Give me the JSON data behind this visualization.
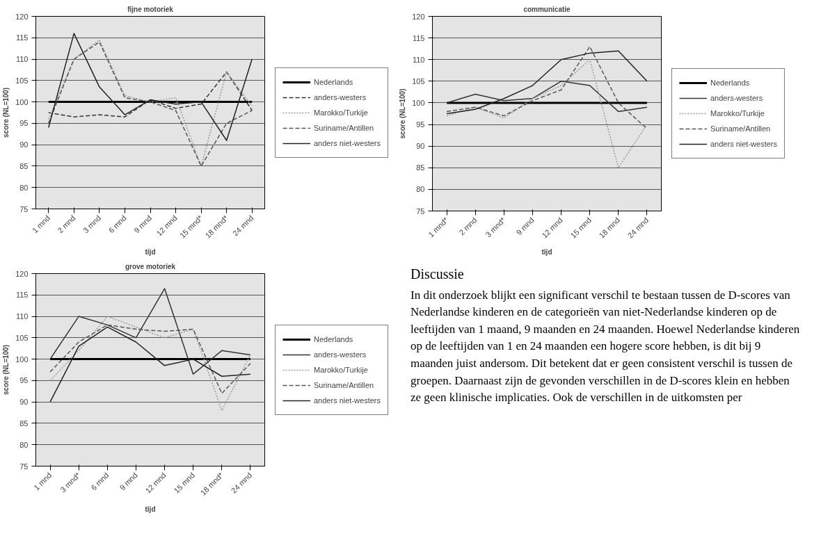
{
  "chart_data": [
    {
      "type": "line",
      "title": "fijne motoriek",
      "xlabel": "tijd",
      "ylabel": "score (NL=100)",
      "categories": [
        "1 mnd",
        "2 mnd",
        "3 mnd",
        "6 mnd",
        "9 mnd",
        "12 mnd",
        "15 mnd*",
        "18 mnd*",
        "24 mnd"
      ],
      "ylim": [
        75,
        120
      ],
      "yticks": [
        75,
        80,
        85,
        90,
        95,
        100,
        105,
        110,
        115,
        120
      ],
      "grid": "y",
      "legend": "right",
      "series": [
        {
          "name": "Nederlands",
          "color": "#000000",
          "line_style": "solid",
          "values": [
            100,
            100,
            100,
            100,
            100,
            100,
            100,
            100,
            100
          ]
        },
        {
          "name": "anders-westers",
          "color": "#333333",
          "line_style": "dashed",
          "values": [
            97.5,
            96.5,
            97,
            96.5,
            100.5,
            98.5,
            99.5,
            107,
            98
          ]
        },
        {
          "name": "Marokko/Turkije",
          "color": "#9a9a9a",
          "line_style": "dotted",
          "values": [
            96,
            110,
            114.5,
            101.5,
            100,
            101,
            85,
            107,
            99
          ]
        },
        {
          "name": "Suriname/Antillen",
          "color": "#555555",
          "line_style": "dashed",
          "values": [
            95,
            110,
            114,
            101,
            100,
            98,
            85,
            95,
            98
          ]
        },
        {
          "name": "anders niet-westers",
          "color": "#222222",
          "line_style": "solid",
          "values": [
            94,
            116,
            103.5,
            97,
            100.5,
            99.5,
            100,
            91,
            110
          ]
        }
      ]
    },
    {
      "type": "line",
      "title": "communicatie",
      "xlabel": "tijd",
      "ylabel": "score (NL=100)",
      "categories": [
        "1 mnd*",
        "2 mnd",
        "3 mnd*",
        "9 mnd",
        "12 mnd",
        "15 mnd",
        "18 mnd",
        "24 mnd"
      ],
      "ylim": [
        75,
        120
      ],
      "yticks": [
        75,
        80,
        85,
        90,
        95,
        100,
        105,
        110,
        115,
        120
      ],
      "grid": "y",
      "legend": "right",
      "series": [
        {
          "name": "Nederlands",
          "color": "#000000",
          "line_style": "solid",
          "values": [
            100,
            100,
            100,
            100,
            100,
            100,
            100,
            100
          ]
        },
        {
          "name": "anders-westers",
          "color": "#333333",
          "line_style": "solid",
          "values": [
            100,
            102,
            100.5,
            101,
            105,
            104,
            98,
            99
          ]
        },
        {
          "name": "Marokko/Turkije",
          "color": "#9a9a9a",
          "line_style": "dotted",
          "values": [
            97,
            99,
            96.5,
            101,
            104,
            110,
            85,
            95
          ]
        },
        {
          "name": "Suriname/Antillen",
          "color": "#555555",
          "line_style": "dashed",
          "values": [
            98,
            99,
            97,
            100.5,
            103,
            113,
            100,
            94
          ]
        },
        {
          "name": "anders niet-westers",
          "color": "#222222",
          "line_style": "solid",
          "values": [
            97.5,
            98.5,
            101,
            104,
            110,
            111.5,
            112,
            105
          ]
        }
      ]
    },
    {
      "type": "line",
      "title": "grove motoriek",
      "xlabel": "tijd",
      "ylabel": "score (NL=100)",
      "categories": [
        "1 mnd",
        "3 mnd*",
        "6 mnd",
        "9 mnd",
        "12 mnd",
        "15 mnd",
        "18 mnd*",
        "24 mnd"
      ],
      "ylim": [
        75,
        120
      ],
      "yticks": [
        75,
        80,
        85,
        90,
        95,
        100,
        105,
        110,
        115,
        120
      ],
      "grid": "y",
      "legend": "right",
      "series": [
        {
          "name": "Nederlands",
          "color": "#000000",
          "line_style": "solid",
          "values": [
            100,
            100,
            100,
            100,
            100,
            100,
            100,
            100
          ]
        },
        {
          "name": "anders-westers",
          "color": "#333333",
          "line_style": "solid",
          "values": [
            100,
            110,
            108,
            105,
            116.5,
            96.5,
            102,
            101
          ]
        },
        {
          "name": "Marokko/Turkije",
          "color": "#9a9a9a",
          "line_style": "dotted",
          "values": [
            95,
            102,
            110,
            107.5,
            105,
            107,
            88,
            101
          ]
        },
        {
          "name": "Suriname/Antillen",
          "color": "#555555",
          "line_style": "dashed",
          "values": [
            97,
            104,
            108,
            107,
            106.5,
            107,
            92,
            99
          ]
        },
        {
          "name": "anders niet-westers",
          "color": "#222222",
          "line_style": "solid",
          "values": [
            90,
            103,
            107.5,
            104,
            98.5,
            100,
            96,
            96.5
          ]
        }
      ]
    },
    {
      "type": "other",
      "title": "Discussie",
      "annotations": [
        "In dit onderzoek blijkt een significant verschil te bestaan tussen de D-scores van Nederlandse kinderen en de categorieën van niet-Nederlandse kinderen op de leeftijden van 1 maand, 9 maanden en 24 maanden. Hoewel Nederlandse kinderen op de leeftijden van 1 en 24 maanden een hogere score hebben, is dit bij 9 maanden juist andersom. Dit betekent dat er geen consistent verschil is tussen de groepen. Daarnaast zijn de gevonden verschillen in de D-scores klein en hebben ze geen klinische implicaties. Ook de verschillen in de uitkomsten per"
      ]
    }
  ]
}
